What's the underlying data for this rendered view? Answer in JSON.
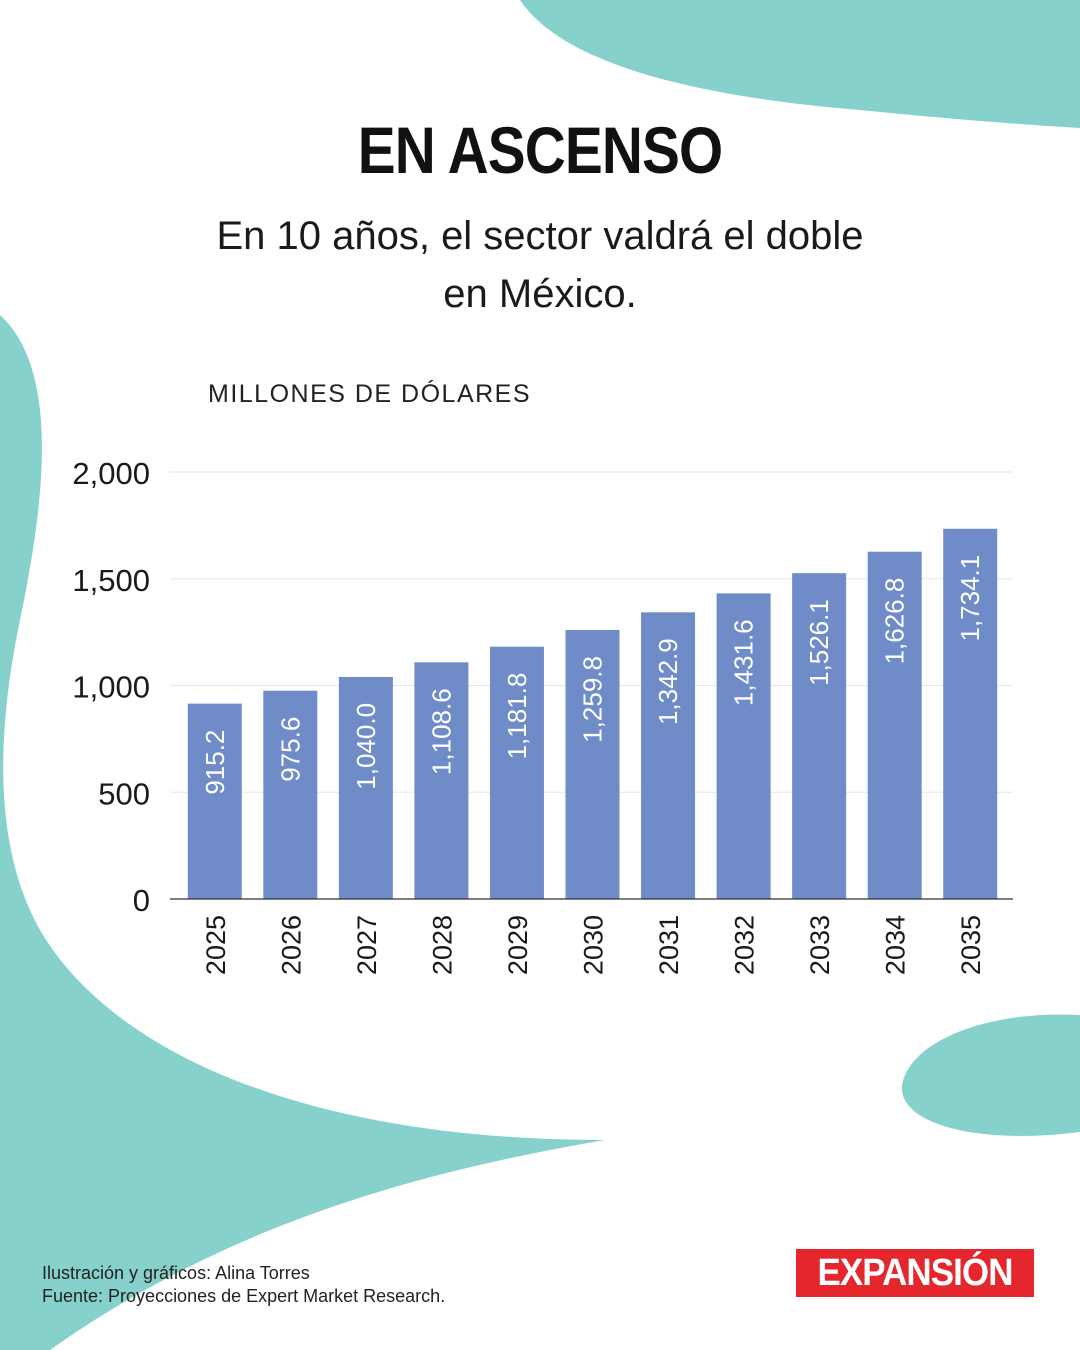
{
  "header": {
    "title": "EN ASCENSO",
    "subtitle_line1": "En 10 años, el sector valdrá el doble",
    "subtitle_line2": "en México."
  },
  "footer": {
    "credit": "Ilustración y gráficos: Alina Torres",
    "source": "Fuente: Proyecciones de Expert Market Research."
  },
  "brand": {
    "logo_text": "EXPANSIÓN"
  },
  "colors": {
    "bar": "#6f8bc8",
    "blob": "#86d1cb",
    "logo_bg": "#e5262d"
  },
  "chart_data": {
    "type": "bar",
    "ylabel": "MILLONES DE DÓLARES",
    "categories": [
      "2025",
      "2026",
      "2027",
      "2028",
      "2029",
      "2030",
      "2031",
      "2032",
      "2033",
      "2034",
      "2035"
    ],
    "values": [
      915.2,
      975.6,
      1040.0,
      1108.6,
      1181.8,
      1259.8,
      1342.9,
      1431.6,
      1526.1,
      1626.8,
      1734.1
    ],
    "value_labels": [
      "915.2",
      "975.6",
      "1,040.0",
      "1,108.6",
      "1,181.8",
      "1,259.8",
      "1,342.9",
      "1,431.6",
      "1,526.1",
      "1,626.8",
      "1,734.1"
    ],
    "yticks": [
      0,
      500,
      1000,
      1500,
      2000
    ],
    "ytick_labels": [
      "0",
      "500",
      "1,000",
      "1,500",
      "2,000"
    ],
    "ylim": [
      0,
      2000
    ],
    "grid": true,
    "legend": "none"
  }
}
